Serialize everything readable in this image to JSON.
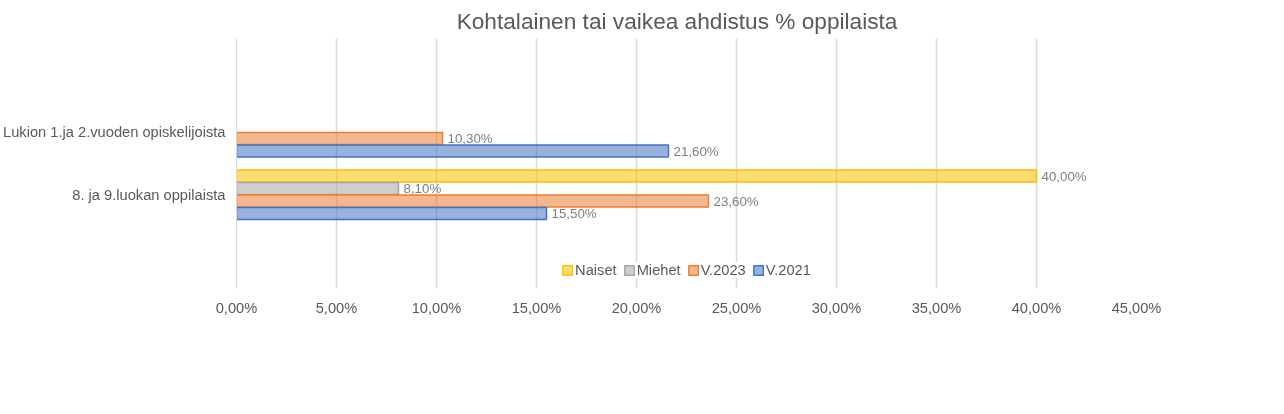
{
  "chart_data": {
    "type": "bar",
    "orientation": "horizontal",
    "title": "Kohtalainen  tai vaikea  ahdistus  % oppilaista",
    "categories": [
      "Lukion 1.ja 2.vuoden opiskelijoista",
      "8. ja 9.luokan oppilaista"
    ],
    "series": [
      {
        "name": "Naiset",
        "color": "#ffc000",
        "values": [
          null,
          40.0
        ],
        "value_labels": [
          null,
          "40,00%"
        ]
      },
      {
        "name": "Miehet",
        "color": "#a5a5a5",
        "values": [
          null,
          8.1
        ],
        "value_labels": [
          null,
          "8,10%"
        ]
      },
      {
        "name": "V.2023",
        "color": "#ed7d31",
        "values": [
          10.3,
          23.6
        ],
        "value_labels": [
          "10,30%",
          "23,60%"
        ]
      },
      {
        "name": "V.2021",
        "color": "#4472c4",
        "values": [
          21.6,
          15.5
        ],
        "value_labels": [
          "21,60%",
          "15,50%"
        ]
      }
    ],
    "xlim": [
      0,
      45
    ],
    "xticks": [
      {
        "value": 0,
        "label": "0,00%"
      },
      {
        "value": 5,
        "label": "5,00%"
      },
      {
        "value": 10,
        "label": "10,00%"
      },
      {
        "value": 15,
        "label": "15,00%"
      },
      {
        "value": 20,
        "label": "20,00%"
      },
      {
        "value": 25,
        "label": "25,00%"
      },
      {
        "value": 30,
        "label": "30,00%"
      },
      {
        "value": 35,
        "label": "35,00%"
      },
      {
        "value": 40,
        "label": "40,00%"
      },
      {
        "value": 45,
        "label": "45,00%"
      }
    ],
    "grid": "x",
    "legend": "bottom"
  }
}
